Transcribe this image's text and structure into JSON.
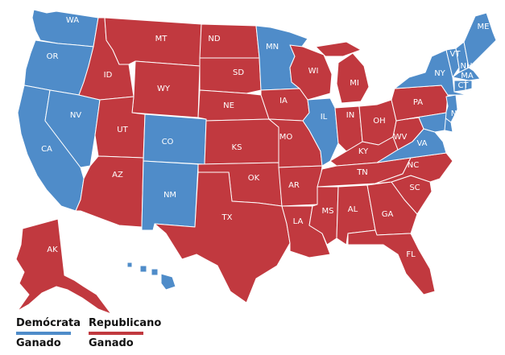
{
  "colors": {
    "dem": "#4f8cc9",
    "rep": "#c1393f",
    "border": "#ffffff"
  },
  "legend": {
    "dem": {
      "line1": "Demócrata",
      "line2": "Ganado",
      "color": "#4f8cc9"
    },
    "rep": {
      "line1": "Republicano",
      "line2": "Ganado",
      "color": "#c1393f"
    }
  },
  "states": [
    {
      "abbr": "WA",
      "party": "dem"
    },
    {
      "abbr": "OR",
      "party": "dem"
    },
    {
      "abbr": "CA",
      "party": "dem"
    },
    {
      "abbr": "NV",
      "party": "dem"
    },
    {
      "abbr": "ID",
      "party": "rep"
    },
    {
      "abbr": "MT",
      "party": "rep"
    },
    {
      "abbr": "WY",
      "party": "rep"
    },
    {
      "abbr": "UT",
      "party": "rep"
    },
    {
      "abbr": "AZ",
      "party": "rep"
    },
    {
      "abbr": "CO",
      "party": "dem"
    },
    {
      "abbr": "NM",
      "party": "dem"
    },
    {
      "abbr": "ND",
      "party": "rep"
    },
    {
      "abbr": "SD",
      "party": "rep"
    },
    {
      "abbr": "NE",
      "party": "rep"
    },
    {
      "abbr": "KS",
      "party": "rep"
    },
    {
      "abbr": "OK",
      "party": "rep"
    },
    {
      "abbr": "TX",
      "party": "rep"
    },
    {
      "abbr": "MN",
      "party": "dem"
    },
    {
      "abbr": "IA",
      "party": "rep"
    },
    {
      "abbr": "MO",
      "party": "rep"
    },
    {
      "abbr": "AR",
      "party": "rep"
    },
    {
      "abbr": "LA",
      "party": "rep"
    },
    {
      "abbr": "WI",
      "party": "rep"
    },
    {
      "abbr": "IL",
      "party": "dem"
    },
    {
      "abbr": "MI",
      "party": "rep"
    },
    {
      "abbr": "IN",
      "party": "rep"
    },
    {
      "abbr": "OH",
      "party": "rep"
    },
    {
      "abbr": "KY",
      "party": "rep"
    },
    {
      "abbr": "TN",
      "party": "rep"
    },
    {
      "abbr": "MS",
      "party": "rep"
    },
    {
      "abbr": "AL",
      "party": "rep"
    },
    {
      "abbr": "GA",
      "party": "rep"
    },
    {
      "abbr": "FL",
      "party": "rep"
    },
    {
      "abbr": "SC",
      "party": "rep"
    },
    {
      "abbr": "NC",
      "party": "rep"
    },
    {
      "abbr": "VA",
      "party": "dem"
    },
    {
      "abbr": "WV",
      "party": "rep"
    },
    {
      "abbr": "PA",
      "party": "rep"
    },
    {
      "abbr": "NY",
      "party": "dem"
    },
    {
      "abbr": "VT",
      "party": "dem"
    },
    {
      "abbr": "NH",
      "party": "dem"
    },
    {
      "abbr": "ME",
      "party": "dem"
    },
    {
      "abbr": "MA",
      "party": "dem"
    },
    {
      "abbr": "CT",
      "party": "dem"
    },
    {
      "abbr": "RI",
      "party": "dem"
    },
    {
      "abbr": "NJ",
      "party": "dem"
    },
    {
      "abbr": "DE",
      "party": "dem"
    },
    {
      "abbr": "MD",
      "party": "dem"
    },
    {
      "abbr": "AK",
      "party": "rep"
    },
    {
      "abbr": "HI",
      "party": "dem"
    }
  ]
}
